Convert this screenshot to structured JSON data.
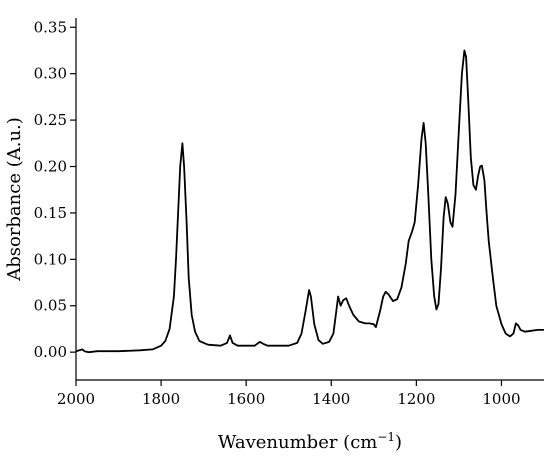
{
  "chart_data": {
    "type": "line",
    "xlabel": "Wavenumber (cm",
    "xlabel_sup": "−1",
    "xlabel_end": ")",
    "ylabel": "Absorbance (A.u.)",
    "xlim": [
      2000,
      900
    ],
    "ylim": [
      -0.03,
      0.36
    ],
    "x_reversed": true,
    "grid": false,
    "x_ticks": [
      2000,
      1800,
      1600,
      1400,
      1200,
      1000
    ],
    "x_tick_labels": [
      "2000",
      "1800",
      "1600",
      "1400",
      "1200",
      "1000"
    ],
    "y_ticks": [
      0.0,
      0.05,
      0.1,
      0.15,
      0.2,
      0.25,
      0.3,
      0.35
    ],
    "y_tick_labels": [
      "0.00",
      "0.05",
      "0.10",
      "0.15",
      "0.20",
      "0.25",
      "0.30",
      "0.35"
    ],
    "series": [
      {
        "color": "#000000",
        "points": [
          [
            2000,
            0.001
          ],
          [
            1985,
            0.003
          ],
          [
            1980,
            0.001
          ],
          [
            1970,
            0.0
          ],
          [
            1950,
            0.001
          ],
          [
            1900,
            0.001
          ],
          [
            1850,
            0.002
          ],
          [
            1820,
            0.003
          ],
          [
            1800,
            0.007
          ],
          [
            1790,
            0.012
          ],
          [
            1780,
            0.025
          ],
          [
            1770,
            0.06
          ],
          [
            1765,
            0.1
          ],
          [
            1760,
            0.15
          ],
          [
            1755,
            0.2
          ],
          [
            1750,
            0.225
          ],
          [
            1746,
            0.2
          ],
          [
            1740,
            0.14
          ],
          [
            1735,
            0.08
          ],
          [
            1728,
            0.04
          ],
          [
            1720,
            0.022
          ],
          [
            1710,
            0.012
          ],
          [
            1690,
            0.008
          ],
          [
            1660,
            0.007
          ],
          [
            1645,
            0.01
          ],
          [
            1638,
            0.018
          ],
          [
            1632,
            0.01
          ],
          [
            1620,
            0.007
          ],
          [
            1580,
            0.007
          ],
          [
            1568,
            0.011
          ],
          [
            1560,
            0.009
          ],
          [
            1550,
            0.007
          ],
          [
            1500,
            0.007
          ],
          [
            1480,
            0.01
          ],
          [
            1470,
            0.02
          ],
          [
            1460,
            0.045
          ],
          [
            1452,
            0.067
          ],
          [
            1448,
            0.06
          ],
          [
            1440,
            0.03
          ],
          [
            1430,
            0.013
          ],
          [
            1420,
            0.009
          ],
          [
            1405,
            0.011
          ],
          [
            1395,
            0.02
          ],
          [
            1388,
            0.045
          ],
          [
            1384,
            0.06
          ],
          [
            1378,
            0.05
          ],
          [
            1372,
            0.056
          ],
          [
            1365,
            0.058
          ],
          [
            1358,
            0.05
          ],
          [
            1348,
            0.04
          ],
          [
            1335,
            0.033
          ],
          [
            1320,
            0.031
          ],
          [
            1310,
            0.031
          ],
          [
            1300,
            0.03
          ],
          [
            1295,
            0.027
          ],
          [
            1285,
            0.045
          ],
          [
            1278,
            0.06
          ],
          [
            1272,
            0.065
          ],
          [
            1265,
            0.062
          ],
          [
            1255,
            0.055
          ],
          [
            1245,
            0.057
          ],
          [
            1235,
            0.07
          ],
          [
            1225,
            0.095
          ],
          [
            1218,
            0.12
          ],
          [
            1210,
            0.13
          ],
          [
            1204,
            0.14
          ],
          [
            1196,
            0.18
          ],
          [
            1188,
            0.23
          ],
          [
            1183,
            0.247
          ],
          [
            1178,
            0.225
          ],
          [
            1172,
            0.17
          ],
          [
            1165,
            0.1
          ],
          [
            1158,
            0.06
          ],
          [
            1153,
            0.046
          ],
          [
            1148,
            0.052
          ],
          [
            1142,
            0.09
          ],
          [
            1136,
            0.145
          ],
          [
            1131,
            0.167
          ],
          [
            1126,
            0.16
          ],
          [
            1120,
            0.14
          ],
          [
            1115,
            0.135
          ],
          [
            1108,
            0.17
          ],
          [
            1100,
            0.24
          ],
          [
            1093,
            0.3
          ],
          [
            1087,
            0.325
          ],
          [
            1083,
            0.318
          ],
          [
            1078,
            0.27
          ],
          [
            1072,
            0.21
          ],
          [
            1066,
            0.18
          ],
          [
            1060,
            0.175
          ],
          [
            1055,
            0.19
          ],
          [
            1050,
            0.2
          ],
          [
            1046,
            0.201
          ],
          [
            1040,
            0.185
          ],
          [
            1035,
            0.15
          ],
          [
            1030,
            0.12
          ],
          [
            1020,
            0.08
          ],
          [
            1012,
            0.05
          ],
          [
            1000,
            0.03
          ],
          [
            990,
            0.02
          ],
          [
            980,
            0.017
          ],
          [
            972,
            0.02
          ],
          [
            966,
            0.031
          ],
          [
            961,
            0.029
          ],
          [
            955,
            0.024
          ],
          [
            945,
            0.022
          ],
          [
            930,
            0.023
          ],
          [
            915,
            0.024
          ],
          [
            900,
            0.024
          ]
        ]
      }
    ]
  }
}
